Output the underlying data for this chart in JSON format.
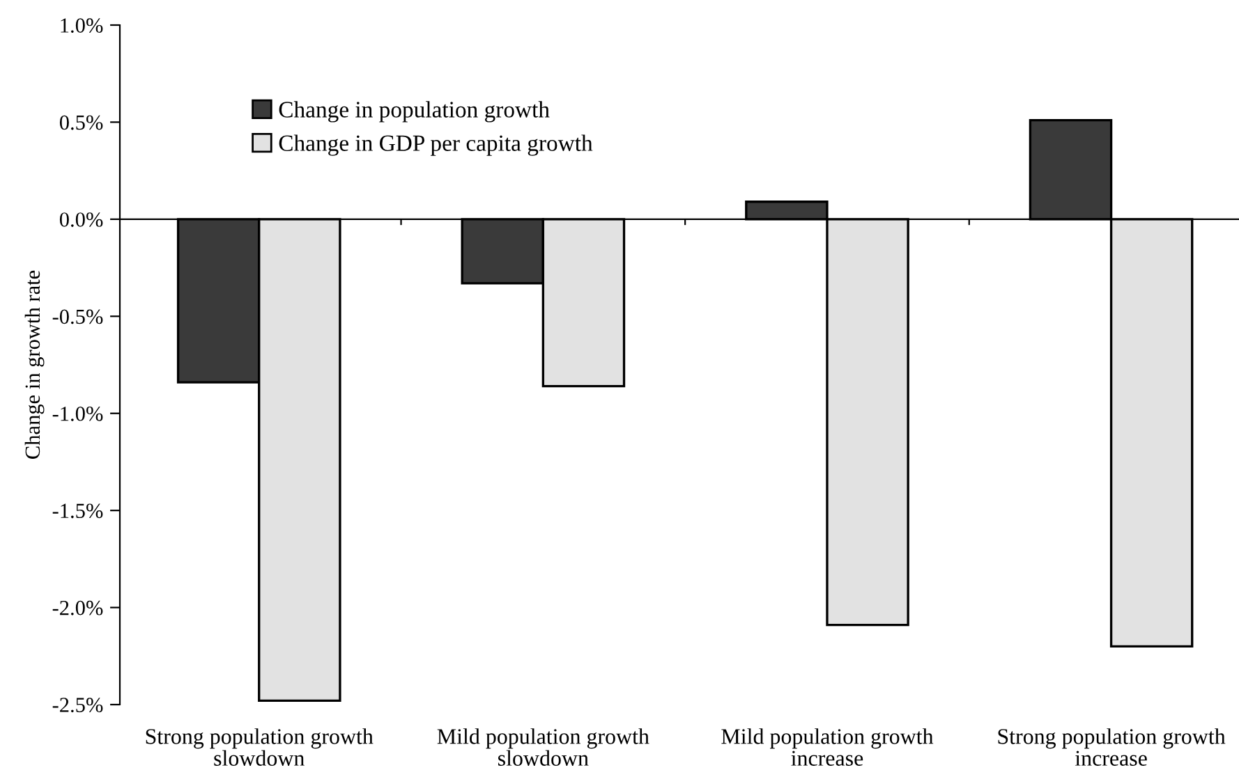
{
  "chart_data": {
    "type": "bar",
    "ylabel": "Change in growth rate",
    "categories": [
      "Strong population growth\nslowdown",
      "Mild population growth\nslowdown",
      "Mild population growth\nincrease",
      "Strong population growth\nincrease"
    ],
    "series": [
      {
        "name": "Change in population growth",
        "color": "#3a3a3a",
        "values": [
          -0.84,
          -0.33,
          0.09,
          0.51
        ]
      },
      {
        "name": "Change in GDP per capita growth",
        "color": "#e2e2e2",
        "values": [
          -2.48,
          -0.86,
          -2.09,
          -2.2
        ]
      }
    ],
    "ylim": [
      -2.5,
      1.0
    ],
    "yticks": [
      {
        "value": -2.5,
        "label": "-2.5%"
      },
      {
        "value": -2.0,
        "label": "-2.0%"
      },
      {
        "value": -1.5,
        "label": "-1.5%"
      },
      {
        "value": -1.0,
        "label": "-1.0%"
      },
      {
        "value": -0.5,
        "label": "-0.5%"
      },
      {
        "value": 0.0,
        "label": "0.0%"
      },
      {
        "value": 0.5,
        "label": "0.5%"
      },
      {
        "value": 1.0,
        "label": "1.0%"
      }
    ],
    "legend": "top left"
  }
}
